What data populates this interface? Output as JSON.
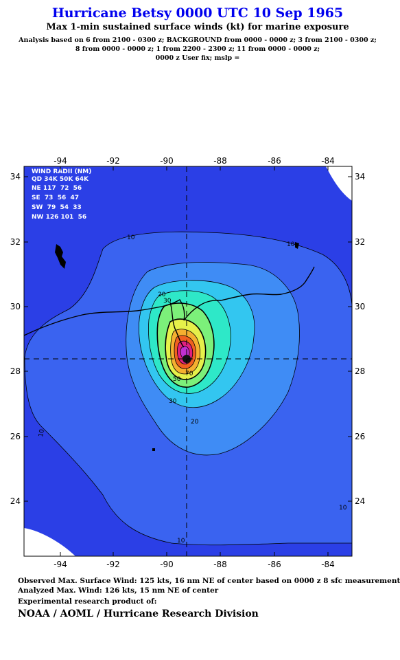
{
  "header": {
    "title": "Hurricane Betsy 0000 UTC 10 Sep 1965",
    "subtitle": "Max 1-min sustained surface winds (kt) for marine exposure",
    "analysis_lines": [
      "Analysis based on  6 from 2100 - 0300 z;  BACKGROUND from 0000 - 0000 z;  3 from 2100 - 0300 z;",
      "8 from 0000 - 0000 z;  1 from 2200 - 2300 z;  11 from 0000 - 0000 z;",
      "0000 z User fix; mslp ="
    ]
  },
  "map": {
    "lon_ticks": [
      "-94",
      "-92",
      "-90",
      "-88",
      "-86",
      "-84"
    ],
    "lat_ticks": [
      "34",
      "32",
      "30",
      "28",
      "26",
      "24"
    ],
    "storm_center": {
      "lon": -89.2,
      "lat": 28.3
    },
    "contour_labels": [
      "10",
      "10",
      "10",
      "10",
      "10",
      "20",
      "20",
      "30",
      "30",
      "50",
      "70"
    ],
    "wind_radii": {
      "title": "WIND RADII (NM)",
      "header": "QD 34K 50K 64K",
      "rows": [
        "NE 117  72  56",
        "SE  73  56  47",
        "SW  79  54  33",
        "NW 126 101  56"
      ]
    },
    "colors": {
      "background": "#2b3fe6",
      "ten_kt": "#3a63f0",
      "twenty_kt": "#3f8cf5",
      "thirty_kt": "#33c6f0",
      "forty_kt": "#2ee8c8",
      "fifty_kt": "#7cf07a",
      "sixty_kt": "#e6f04a",
      "seventy_kt": "#f5b030",
      "eighty_kt": "#f06020",
      "ninety_kt": "#e02080",
      "core": "#c030d0"
    }
  },
  "footer": {
    "observed": "Observed Max. Surface Wind: 125 kts, 16 nm NE of center based on 0000 z 8 sfc measurement",
    "analyzed": "Analyzed Max. Wind: 126 kts, 15 nm NE of center",
    "experimental": "Experimental research product of:",
    "org": "NOAA / AOML / Hurricane Research Division"
  }
}
